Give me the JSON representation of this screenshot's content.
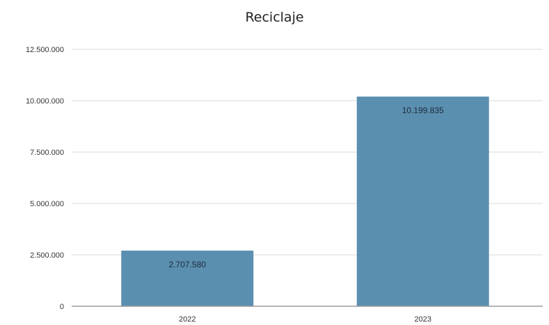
{
  "chart_data": {
    "type": "bar",
    "title": "Reciclaje",
    "categories": [
      "2022",
      "2023"
    ],
    "values": [
      2707580,
      10199835
    ],
    "value_labels": [
      "2.707.580",
      "10.199.835"
    ],
    "ylim": [
      0,
      12500000
    ],
    "yticks": [
      0,
      2500000,
      5000000,
      7500000,
      10000000,
      12500000
    ],
    "ytick_labels": [
      "0",
      "2.500.000",
      "5.000.000",
      "7.500.000",
      "10.000.000",
      "12.500.000"
    ],
    "xlabel": "",
    "ylabel": "",
    "grid": true,
    "legend": "none",
    "bar_color": "#5b8fb0",
    "grid_color": "#d9d9d9",
    "axis_color": "#9a9a9a"
  }
}
